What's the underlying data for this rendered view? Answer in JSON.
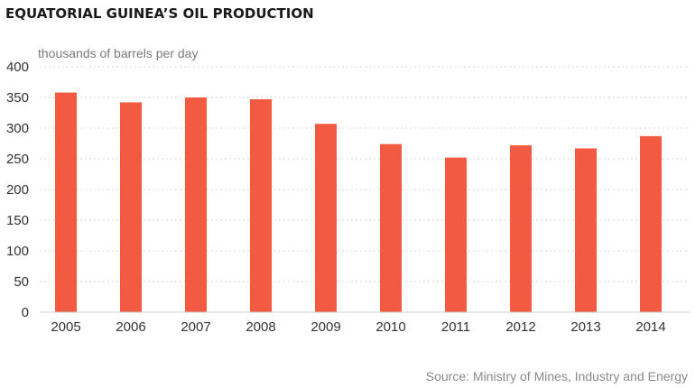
{
  "chart_data": {
    "type": "bar",
    "title": "EQUATORIAL GUINEA’S OIL PRODUCTION",
    "ylabel": "thousands of barrels per day",
    "xlabel": "",
    "categories": [
      "2005",
      "2006",
      "2007",
      "2008",
      "2009",
      "2010",
      "2011",
      "2012",
      "2013",
      "2014"
    ],
    "values": [
      358,
      342,
      350,
      347,
      307,
      274,
      252,
      272,
      267,
      287
    ],
    "ylim": [
      0,
      400
    ],
    "yticks": [
      0,
      50,
      100,
      150,
      200,
      250,
      300,
      350,
      400
    ],
    "grid": true,
    "bar_color": "#f25a42",
    "source": "Source: Ministry of Mines, Industry and Energy"
  }
}
